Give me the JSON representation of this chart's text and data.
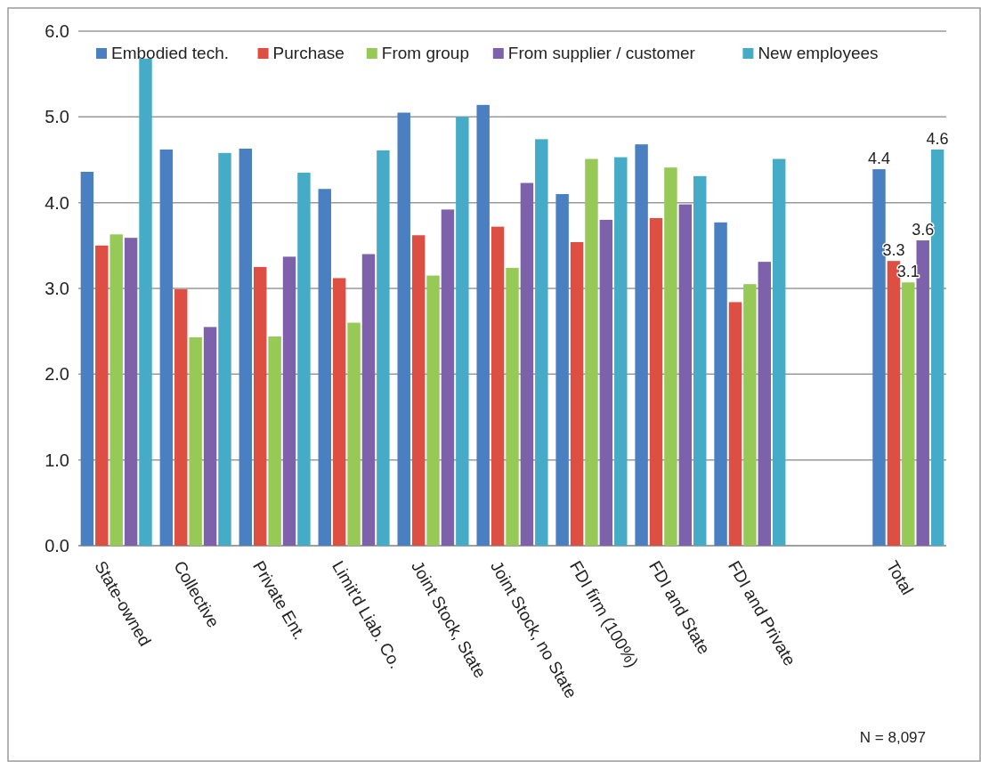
{
  "chart_data": {
    "type": "bar",
    "categories": [
      "State-owned",
      "Collective",
      "Private Ent.",
      "Limit'd Liab. Co.",
      "Joint Stock, State",
      "Joint Stock, no State",
      "FDI firm (100%)",
      "FDI and State",
      "FDI and Private",
      null,
      "Total"
    ],
    "series": [
      {
        "name": "Embodied tech.",
        "color": "#4a7fc1",
        "values": [
          4.36,
          4.62,
          4.63,
          4.16,
          5.05,
          5.14,
          4.1,
          4.68,
          3.77,
          null,
          4.39
        ],
        "value_labels": [
          null,
          null,
          null,
          null,
          null,
          null,
          null,
          null,
          null,
          null,
          "4.4"
        ]
      },
      {
        "name": "Purchase",
        "color": "#dd4f43",
        "values": [
          3.5,
          2.99,
          3.25,
          3.12,
          3.62,
          3.72,
          3.54,
          3.82,
          2.84,
          null,
          3.32
        ],
        "value_labels": [
          null,
          null,
          null,
          null,
          null,
          null,
          null,
          null,
          null,
          null,
          "3.3"
        ]
      },
      {
        "name": "From group",
        "color": "#97c957",
        "values": [
          3.63,
          2.43,
          2.44,
          2.6,
          3.15,
          3.24,
          4.51,
          4.41,
          3.05,
          null,
          3.07
        ],
        "value_labels": [
          null,
          null,
          null,
          null,
          null,
          null,
          null,
          null,
          null,
          null,
          "3.1"
        ]
      },
      {
        "name": "From supplier / customer",
        "color": "#7d62ab",
        "values": [
          3.59,
          2.55,
          3.37,
          3.4,
          3.92,
          4.23,
          3.8,
          3.98,
          3.31,
          null,
          3.56
        ],
        "value_labels": [
          null,
          null,
          null,
          null,
          null,
          null,
          null,
          null,
          null,
          null,
          "3.6"
        ]
      },
      {
        "name": "New employees",
        "color": "#46abc6",
        "values": [
          5.68,
          4.58,
          4.35,
          4.61,
          5.0,
          4.74,
          4.53,
          4.31,
          4.51,
          null,
          4.62
        ],
        "value_labels": [
          null,
          null,
          null,
          null,
          null,
          null,
          null,
          null,
          null,
          null,
          "4.6"
        ]
      }
    ],
    "ylim": [
      0,
      6
    ],
    "yticks": [
      {
        "value": 0,
        "label": "0.0"
      },
      {
        "value": 1,
        "label": "1.0"
      },
      {
        "value": 2,
        "label": "2.0"
      },
      {
        "value": 3,
        "label": "3.0"
      },
      {
        "value": 4,
        "label": "4.0"
      },
      {
        "value": 5,
        "label": "5.0"
      },
      {
        "value": 6,
        "label": "6.0"
      }
    ],
    "grid": "y",
    "legend": "top",
    "annotations": [
      "N = 8,097"
    ]
  }
}
